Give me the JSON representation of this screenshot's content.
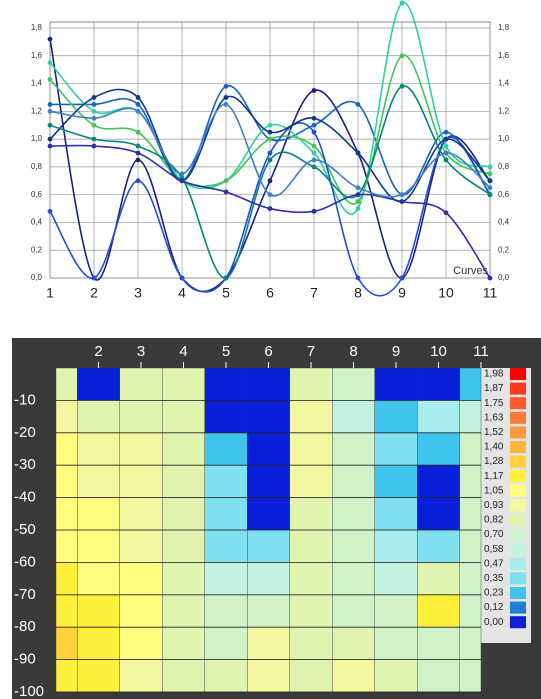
{
  "chart_data": [
    {
      "type": "line",
      "x": [
        1,
        2,
        3,
        4,
        5,
        6,
        7,
        8,
        9,
        10,
        11
      ],
      "xlim": [
        1,
        11
      ],
      "xticks": [
        1,
        2,
        3,
        4,
        5,
        6,
        7,
        8,
        9,
        10,
        11
      ],
      "ylim": [
        0,
        1.8
      ],
      "yticks": [
        {
          "value": 0,
          "label": "0,0"
        },
        {
          "value": 0.2,
          "label": "0,2"
        },
        {
          "value": 0.4,
          "label": "0,4"
        },
        {
          "value": 0.6,
          "label": "0,6"
        },
        {
          "value": 0.8,
          "label": "0,8"
        },
        {
          "value": 1.0,
          "label": "1,0"
        },
        {
          "value": 1.2,
          "label": "1,2"
        },
        {
          "value": 1.4,
          "label": "1,4"
        },
        {
          "value": 1.6,
          "label": "1,6"
        },
        {
          "value": 1.8,
          "label": "1,8"
        }
      ],
      "grid": true,
      "annotation": "Curves",
      "series": [
        {
          "color": "#1a237e",
          "values": [
            1.72,
            0,
            0.85,
            0,
            0,
            0.7,
            1.35,
            0.9,
            0,
            1.0,
            0.7
          ]
        },
        {
          "color": "#1565c0",
          "values": [
            1.25,
            1.25,
            1.25,
            0.7,
            1.38,
            1.0,
            1.1,
            1.25,
            0.6,
            1.05,
            0.6
          ]
        },
        {
          "color": "#2bd3a0",
          "values": [
            1.55,
            1.2,
            1.2,
            0.7,
            0.7,
            1.1,
            0.9,
            0.5,
            1.98,
            0.95,
            0.8
          ]
        },
        {
          "color": "#43c35a",
          "values": [
            1.43,
            1.1,
            1.05,
            0.7,
            0.7,
            1.0,
            0.95,
            0.55,
            1.6,
            0.9,
            0.75
          ]
        },
        {
          "color": "#1e4fd8",
          "values": [
            0.48,
            0,
            0.7,
            0,
            0,
            0.9,
            1.05,
            0,
            0,
            1.0,
            0.6
          ]
        },
        {
          "color": "#0d3a8a",
          "values": [
            1.0,
            1.3,
            1.3,
            0.7,
            1.3,
            1.05,
            1.15,
            0.9,
            0.55,
            1.0,
            0.7
          ]
        },
        {
          "color": "#00897b",
          "values": [
            1.1,
            1.0,
            0.95,
            0.72,
            0,
            0.85,
            0.8,
            0.6,
            1.38,
            0.85,
            0.6
          ]
        },
        {
          "color": "#2a2fb0",
          "values": [
            0.95,
            0.95,
            0.9,
            0.7,
            0.62,
            0.5,
            0.48,
            0.6,
            0.55,
            0.47,
            0
          ]
        },
        {
          "color": "#3f7fc9",
          "values": [
            1.2,
            1.15,
            1.2,
            0.75,
            1.25,
            0.6,
            0.85,
            0.65,
            0.6,
            0.9,
            0.65
          ]
        }
      ]
    },
    {
      "type": "contour",
      "x": [
        1,
        2,
        3,
        4,
        5,
        6,
        7,
        8,
        9,
        10,
        11
      ],
      "y": [
        -5,
        -15,
        -25,
        -35,
        -45,
        -55,
        -65,
        -75,
        -85,
        -95
      ],
      "xlim": [
        1,
        11
      ],
      "xticks": [
        2,
        3,
        4,
        5,
        6,
        7,
        8,
        9,
        10,
        11
      ],
      "ylim": [
        -100,
        0
      ],
      "yticks": [
        -10,
        -20,
        -30,
        -40,
        -50,
        -60,
        -70,
        -80,
        -90,
        -100
      ],
      "z": [
        [
          0.9,
          0.1,
          0.9,
          0.9,
          0.05,
          0.05,
          0.9,
          0.8,
          0.05,
          0.05,
          0.3
        ],
        [
          1.0,
          0.9,
          0.9,
          0.9,
          0.05,
          0.05,
          0.95,
          0.6,
          0.3,
          0.5,
          0.6
        ],
        [
          1.05,
          1.0,
          0.95,
          0.9,
          0.3,
          0.1,
          0.95,
          0.7,
          0.35,
          0.3,
          0.7
        ],
        [
          1.05,
          1.0,
          0.95,
          0.85,
          0.35,
          0.05,
          0.95,
          0.7,
          0.3,
          0.1,
          0.7
        ],
        [
          1.1,
          1.05,
          1.0,
          0.85,
          0.4,
          0.1,
          0.9,
          0.75,
          0.35,
          0.1,
          0.75
        ],
        [
          1.15,
          1.1,
          1.0,
          0.85,
          0.45,
          0.35,
          0.9,
          0.75,
          0.5,
          0.4,
          0.75
        ],
        [
          1.2,
          1.15,
          1.05,
          0.85,
          0.6,
          0.6,
          0.85,
          0.75,
          0.6,
          0.9,
          0.75
        ],
        [
          1.25,
          1.2,
          1.05,
          0.85,
          0.7,
          0.7,
          0.85,
          0.7,
          0.75,
          1.2,
          0.75
        ],
        [
          1.3,
          1.25,
          1.05,
          0.85,
          0.8,
          0.95,
          0.9,
          0.85,
          0.8,
          0.8,
          0.75
        ],
        [
          1.25,
          1.2,
          1.0,
          0.85,
          0.9,
          1.0,
          0.9,
          0.95,
          0.85,
          0.8,
          0.75
        ]
      ],
      "levels": [
        {
          "value": 1.98,
          "label": "1,98",
          "color": "#ff0000"
        },
        {
          "value": 1.87,
          "label": "1,87",
          "color": "#ff3a1a"
        },
        {
          "value": 1.75,
          "label": "1,75",
          "color": "#ff5a2a"
        },
        {
          "value": 1.63,
          "label": "1,63",
          "color": "#ff7a3a"
        },
        {
          "value": 1.52,
          "label": "1,52",
          "color": "#ff9a3a"
        },
        {
          "value": 1.4,
          "label": "1,40",
          "color": "#ffb43a"
        },
        {
          "value": 1.28,
          "label": "1,28",
          "color": "#ffd13a"
        },
        {
          "value": 1.17,
          "label": "1,17",
          "color": "#fff03c"
        },
        {
          "value": 1.05,
          "label": "1,05",
          "color": "#ffff80"
        },
        {
          "value": 0.93,
          "label": "0,93",
          "color": "#f2f7a0"
        },
        {
          "value": 0.82,
          "label": "0,82",
          "color": "#e0f4b0"
        },
        {
          "value": 0.7,
          "label": "0,70",
          "color": "#d0f2c8"
        },
        {
          "value": 0.58,
          "label": "0,58",
          "color": "#c2f2e0"
        },
        {
          "value": 0.47,
          "label": "0,47",
          "color": "#a8ecef"
        },
        {
          "value": 0.35,
          "label": "0,35",
          "color": "#7fe0f0"
        },
        {
          "value": 0.23,
          "label": "0,23",
          "color": "#3fc4ee"
        },
        {
          "value": 0.12,
          "label": "0,12",
          "color": "#1e7fd8"
        },
        {
          "value": 0,
          "label": "0,00",
          "color": "#0a1fd8"
        }
      ]
    }
  ]
}
